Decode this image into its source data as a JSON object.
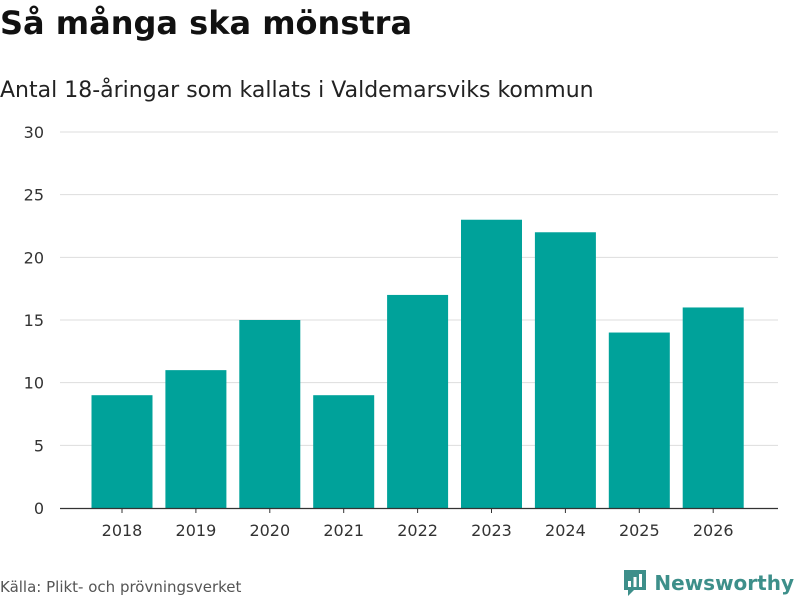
{
  "header": {
    "title": "Så många ska mönstra",
    "subtitle": "Antal 18-åringar som kallats i Valdemarsviks kommun"
  },
  "footer": {
    "source": "Källa: Plikt- och prövningsverket",
    "brand": "Newsworthy",
    "brand_icon": "bar-chart-logo-icon"
  },
  "colors": {
    "bar": "#00a29a",
    "grid": "#dddddd",
    "axis": "#333333",
    "brand": "#3d8f8a"
  },
  "chart_data": {
    "type": "bar",
    "title": "Så många ska mönstra",
    "subtitle": "Antal 18-åringar som kallats i Valdemarsviks kommun",
    "xlabel": "",
    "ylabel": "",
    "categories": [
      "2018",
      "2019",
      "2020",
      "2021",
      "2022",
      "2023",
      "2024",
      "2025",
      "2026"
    ],
    "values": [
      9,
      11,
      15,
      9,
      17,
      23,
      22,
      14,
      16
    ],
    "ylim": [
      0,
      30
    ],
    "yticks": [
      0,
      5,
      10,
      15,
      20,
      25,
      30
    ],
    "grid": true,
    "legend": "none"
  }
}
